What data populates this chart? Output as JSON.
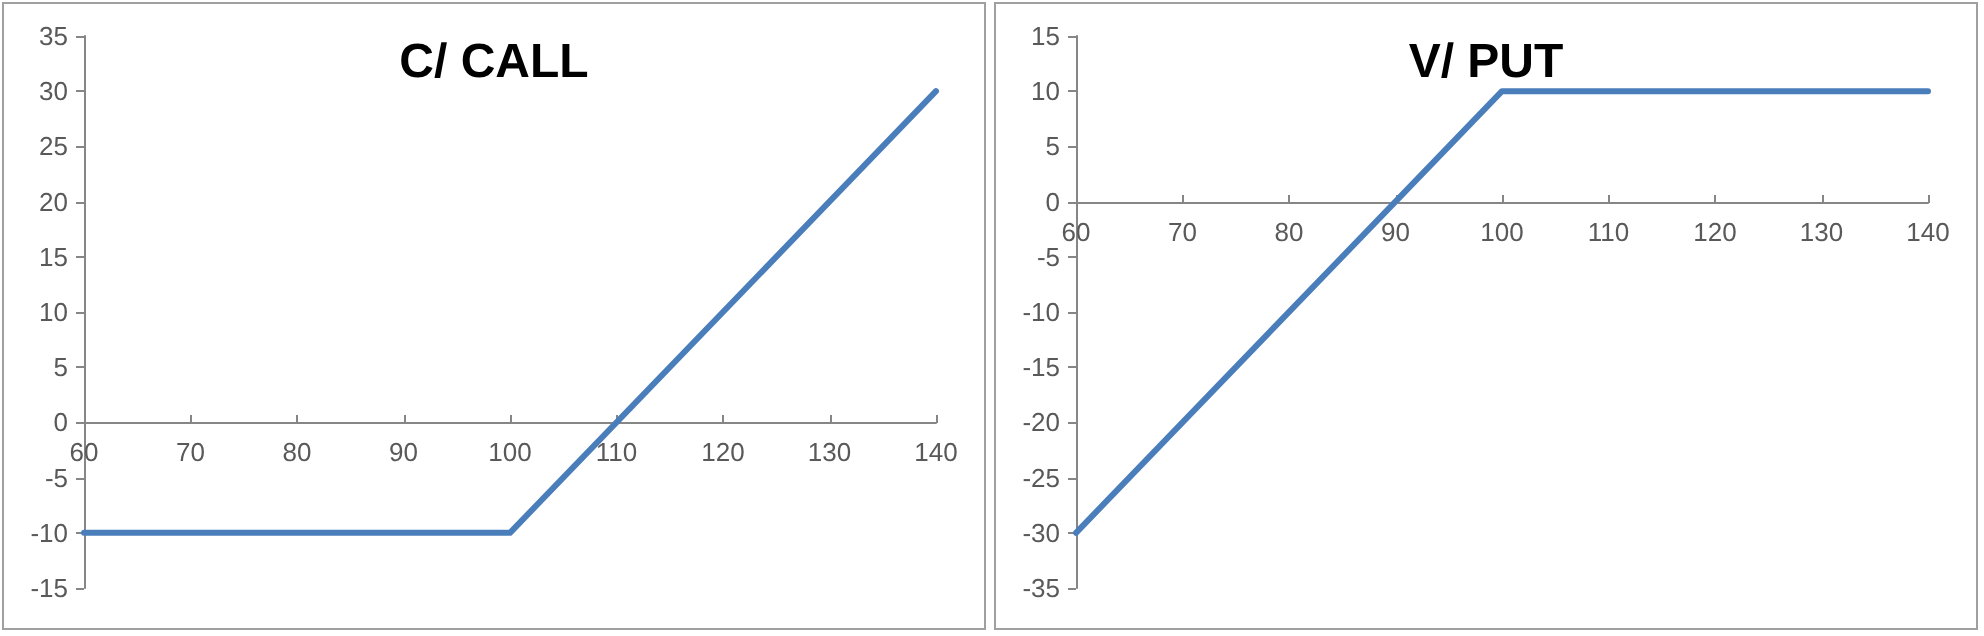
{
  "chart_data": [
    {
      "type": "line",
      "title": "C/ CALL",
      "x": [
        60,
        100,
        140
      ],
      "series": [
        {
          "color": "#4a7ebb",
          "values": [
            -10,
            -10,
            30
          ]
        }
      ],
      "xlim": [
        60,
        140
      ],
      "xticks": [
        60,
        70,
        80,
        90,
        100,
        110,
        120,
        130,
        140
      ],
      "ylim": [
        -15,
        35
      ],
      "yticks": [
        -15,
        -10,
        -5,
        0,
        5,
        10,
        15,
        20,
        25,
        30,
        35
      ],
      "grid": false,
      "marker": "none",
      "line_style": "solid"
    },
    {
      "type": "line",
      "title": "V/ PUT",
      "x": [
        60,
        100,
        140
      ],
      "series": [
        {
          "color": "#4a7ebb",
          "values": [
            -30,
            10,
            10
          ]
        }
      ],
      "xlim": [
        60,
        140
      ],
      "xticks": [
        60,
        70,
        80,
        90,
        100,
        110,
        120,
        130,
        140
      ],
      "ylim": [
        -35,
        15
      ],
      "yticks": [
        -35,
        -30,
        -25,
        -20,
        -15,
        -10,
        -5,
        0,
        5,
        10,
        15
      ],
      "grid": false,
      "marker": "none",
      "line_style": "solid"
    }
  ]
}
